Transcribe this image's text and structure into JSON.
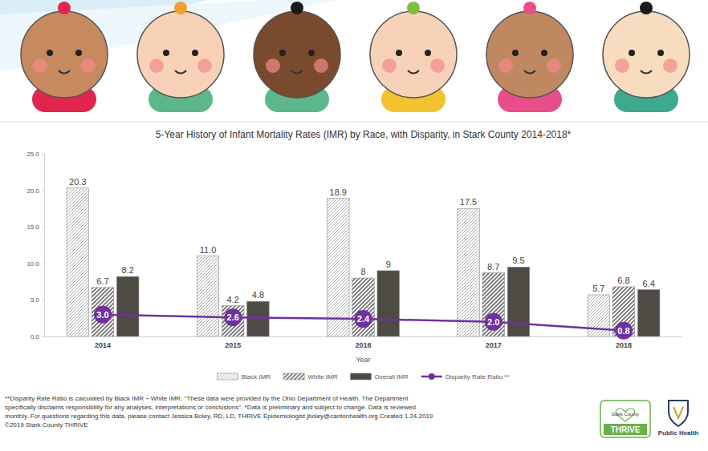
{
  "chart_data": {
    "type": "bar",
    "title": "5-Year History of Infant Mortality Rates (IMR) by Race, with Disparity, in Stark County 2014-2018*",
    "x_label": "Year",
    "categories": [
      "2014",
      "2015",
      "2016",
      "2017",
      "2018"
    ],
    "series": [
      {
        "name": "Black IMR",
        "type": "bar",
        "color": "#9a9a9a",
        "values": [
          20.3,
          11.0,
          18.9,
          17.5,
          5.7
        ],
        "value_labels": [
          "20.3",
          "11.0",
          "18.9",
          "17.5",
          "5.7"
        ]
      },
      {
        "name": "White IMR",
        "type": "bar",
        "color": "#6e6e6e",
        "values": [
          6.7,
          4.2,
          8.0,
          8.7,
          6.8
        ]
      },
      {
        "name": "Overall IMR",
        "type": "bar",
        "color": "#4d4b43",
        "values": [
          8.2,
          4.8,
          9.0,
          9.5,
          6.4
        ]
      },
      {
        "name": "Disparity Rate Ratio **",
        "type": "line",
        "color": "#7030a0",
        "marker": "circle",
        "values": [
          3.0,
          2.6,
          2.4,
          2.0,
          0.8
        ],
        "value_labels": [
          "3.0",
          "2.6",
          "2.4",
          "2.0",
          "0.8"
        ]
      }
    ],
    "ylim": [
      0,
      25
    ],
    "yticks": [
      {
        "value": 0,
        "label": "0.0"
      },
      {
        "value": 5,
        "label": "5.0"
      },
      {
        "value": 10,
        "label": "10.0"
      },
      {
        "value": 15,
        "label": "15.0"
      },
      {
        "value": 20,
        "label": "20.0"
      },
      {
        "value": 25,
        "label": "25.0"
      }
    ],
    "grid": false,
    "legend": "bottom",
    "data_labels": true
  },
  "footer": {
    "notes": [
      "**Disparity Rate Ratio is calculated by Black IMR ÷ White IMR. \"These data were provided by the Ohio Department of Health. The Department",
      "specifically disclaims responsibility for any analyses, interpretations or conclusions\". *Data is preliminary and subject to change. Data is reviewed",
      "monthly. For questions regarding this data, please contact Jessica Boley, RD, LD, THRIVE Epidemiologist jboley@cantonhealth.org Created 1.24.2019",
      "©2019 Stark County THRIVE"
    ],
    "logos": [
      "Stark County",
      "THRIVE",
      "Public Health"
    ]
  }
}
